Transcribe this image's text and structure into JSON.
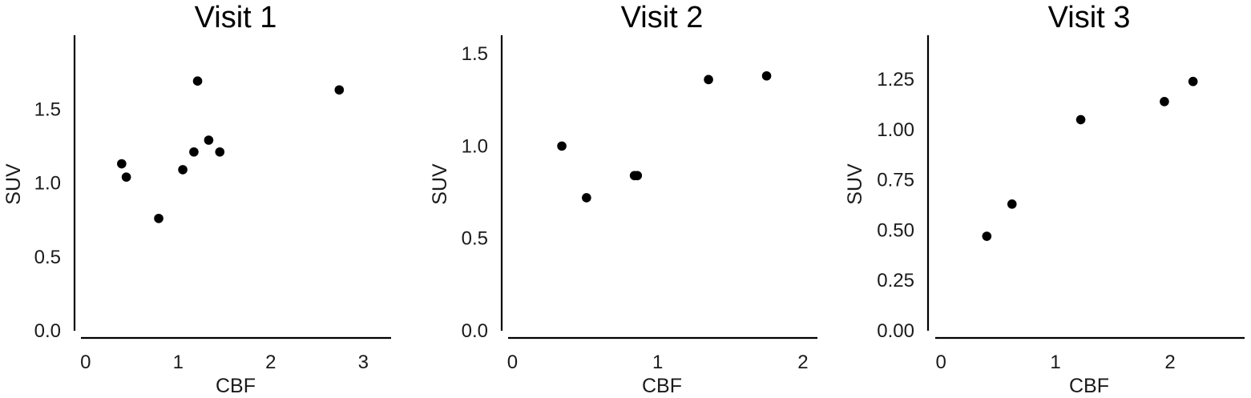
{
  "chart_data": [
    {
      "type": "scatter",
      "title": "Visit 1",
      "xlabel": "CBF",
      "ylabel": "SUV",
      "xlim": [
        -0.05,
        3.3
      ],
      "ylim": [
        0.0,
        2.0
      ],
      "xticks": [
        0,
        1,
        2,
        3
      ],
      "xtick_labels": [
        "0",
        "1",
        "2",
        "3"
      ],
      "yticks": [
        0.0,
        0.5,
        1.0,
        1.5
      ],
      "ytick_labels": [
        "0.0",
        "0.5",
        "1.0",
        "1.5"
      ],
      "grid": false,
      "points": [
        {
          "x": 0.39,
          "y": 1.13
        },
        {
          "x": 0.44,
          "y": 1.04
        },
        {
          "x": 0.79,
          "y": 0.76
        },
        {
          "x": 1.05,
          "y": 1.09
        },
        {
          "x": 1.17,
          "y": 1.21
        },
        {
          "x": 1.21,
          "y": 1.69
        },
        {
          "x": 1.33,
          "y": 1.29
        },
        {
          "x": 1.45,
          "y": 1.21
        },
        {
          "x": 2.74,
          "y": 1.63
        }
      ]
    },
    {
      "type": "scatter",
      "title": "Visit 2",
      "xlabel": "CBF",
      "ylabel": "SUV",
      "xlim": [
        -0.03,
        2.1
      ],
      "ylim": [
        0.0,
        1.6
      ],
      "xticks": [
        0,
        1,
        2
      ],
      "xtick_labels": [
        "0",
        "1",
        "2"
      ],
      "yticks": [
        0.0,
        0.5,
        1.0,
        1.5
      ],
      "ytick_labels": [
        "0.0",
        "0.5",
        "1.0",
        "1.5"
      ],
      "grid": false,
      "points": [
        {
          "x": 0.34,
          "y": 1.0
        },
        {
          "x": 0.51,
          "y": 0.72
        },
        {
          "x": 0.84,
          "y": 0.84
        },
        {
          "x": 0.86,
          "y": 0.84
        },
        {
          "x": 1.35,
          "y": 1.36
        },
        {
          "x": 1.75,
          "y": 1.38
        }
      ]
    },
    {
      "type": "scatter",
      "title": "Visit 3",
      "xlabel": "CBF",
      "ylabel": "SUV",
      "xlim": [
        -0.05,
        2.65
      ],
      "ylim": [
        0.0,
        1.47
      ],
      "xticks": [
        0,
        1,
        2
      ],
      "xtick_labels": [
        "0",
        "1",
        "2"
      ],
      "yticks": [
        0.0,
        0.25,
        0.5,
        0.75,
        1.0,
        1.25
      ],
      "ytick_labels": [
        "0.00",
        "0.25",
        "0.50",
        "0.75",
        "1.00",
        "1.25"
      ],
      "grid": false,
      "points": [
        {
          "x": 0.4,
          "y": 0.47
        },
        {
          "x": 0.62,
          "y": 0.63
        },
        {
          "x": 1.22,
          "y": 1.05
        },
        {
          "x": 1.95,
          "y": 1.14
        },
        {
          "x": 2.2,
          "y": 1.24
        }
      ]
    }
  ]
}
